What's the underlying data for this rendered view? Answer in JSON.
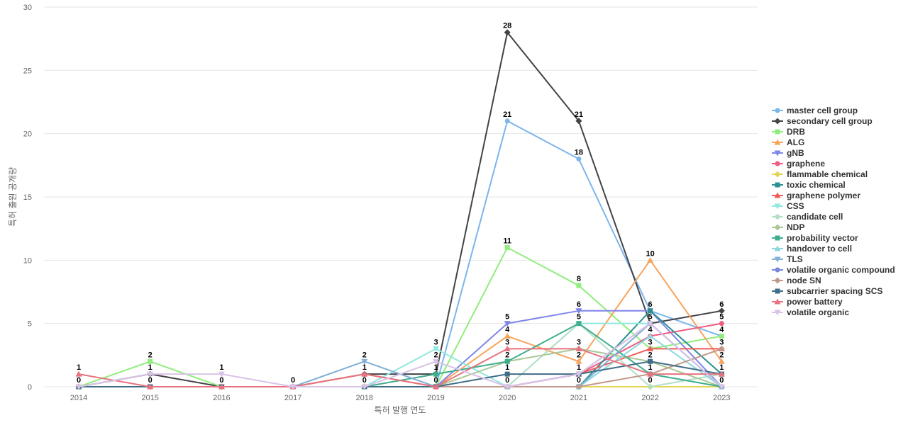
{
  "chart_data": {
    "type": "line",
    "title": "",
    "xlabel": "특허 발행 연도",
    "ylabel": "특허 출원 공개량",
    "ylim": [
      0,
      30
    ],
    "yticks": [
      0,
      5,
      10,
      15,
      20,
      25,
      30
    ],
    "categories": [
      "2014",
      "2015",
      "2016",
      "2017",
      "2018",
      "2019",
      "2020",
      "2021",
      "2022",
      "2023"
    ],
    "legend_position": "right",
    "series": [
      {
        "name": "master cell group",
        "color": "#7cb5ec",
        "marker": "circle",
        "values": [
          0,
          0,
          0,
          0,
          0,
          0,
          21,
          18,
          6,
          4
        ]
      },
      {
        "name": "secondary cell group",
        "color": "#434348",
        "marker": "diamond",
        "values": [
          0,
          1,
          0,
          0,
          1,
          1,
          28,
          21,
          5,
          6
        ]
      },
      {
        "name": "DRB",
        "color": "#90ed7d",
        "marker": "square",
        "values": [
          0,
          2,
          0,
          0,
          0,
          0,
          11,
          8,
          3,
          4
        ]
      },
      {
        "name": "ALG",
        "color": "#f7a35c",
        "marker": "triangle",
        "values": [
          0,
          0,
          0,
          0,
          1,
          0,
          4,
          2,
          10,
          2
        ]
      },
      {
        "name": "gNB",
        "color": "#8085e9",
        "marker": "triangle-down",
        "values": [
          0,
          0,
          0,
          0,
          0,
          0,
          5,
          6,
          6,
          0
        ]
      },
      {
        "name": "graphene",
        "color": "#f15c80",
        "marker": "circle",
        "values": [
          0,
          0,
          0,
          0,
          0,
          0,
          0,
          1,
          4,
          5
        ]
      },
      {
        "name": "flammable chemical",
        "color": "#e4d354",
        "marker": "diamond",
        "values": [
          0,
          0,
          0,
          0,
          0,
          0,
          0,
          0,
          0,
          0
        ]
      },
      {
        "name": "toxic chemical",
        "color": "#2b908f",
        "marker": "square",
        "values": [
          0,
          0,
          0,
          0,
          0,
          0,
          0,
          0,
          6,
          1
        ]
      },
      {
        "name": "graphene polymer",
        "color": "#f45b5b",
        "marker": "triangle",
        "values": [
          0,
          0,
          0,
          0,
          0,
          0,
          0,
          1,
          3,
          3
        ]
      },
      {
        "name": "CSS",
        "color": "#91e8e1",
        "marker": "triangle-down",
        "values": [
          0,
          0,
          0,
          0,
          0,
          3,
          0,
          5,
          5,
          0
        ]
      },
      {
        "name": "candidate cell",
        "color": "#b5dfc5",
        "marker": "circle",
        "values": [
          0,
          0,
          0,
          0,
          0,
          0,
          0,
          5,
          0,
          1
        ]
      },
      {
        "name": "NDP",
        "color": "#a8c897",
        "marker": "diamond",
        "values": [
          0,
          0,
          0,
          0,
          0,
          0,
          2,
          3,
          2,
          0
        ]
      },
      {
        "name": "probability vector",
        "color": "#3fae8e",
        "marker": "square",
        "values": [
          0,
          0,
          0,
          0,
          0,
          1,
          2,
          5,
          1,
          0
        ]
      },
      {
        "name": "handover to cell",
        "color": "#8fd6e0",
        "marker": "triangle",
        "values": [
          0,
          0,
          0,
          0,
          0,
          0,
          0,
          0,
          4,
          0
        ]
      },
      {
        "name": "TLS",
        "color": "#82b0d6",
        "marker": "triangle-down",
        "values": [
          0,
          0,
          0,
          0,
          2,
          0,
          0,
          0,
          5,
          0
        ]
      },
      {
        "name": "volatile organic compound",
        "color": "#7a88dc",
        "marker": "circle",
        "values": [
          0,
          0,
          0,
          0,
          0,
          0,
          0,
          1,
          5,
          0
        ]
      },
      {
        "name": "node SN",
        "color": "#c1998a",
        "marker": "diamond",
        "values": [
          0,
          0,
          0,
          0,
          0,
          0,
          0,
          0,
          1,
          3
        ]
      },
      {
        "name": "subcarrier spacing SCS",
        "color": "#406d87",
        "marker": "square",
        "values": [
          0,
          0,
          0,
          0,
          0,
          0,
          1,
          1,
          2,
          1
        ]
      },
      {
        "name": "power battery",
        "color": "#e8727f",
        "marker": "triangle",
        "values": [
          1,
          0,
          0,
          0,
          1,
          0,
          3,
          3,
          1,
          1
        ]
      },
      {
        "name": "volatile organic",
        "color": "#d9c3e6",
        "marker": "triangle-down",
        "values": [
          0,
          1,
          1,
          0,
          0,
          2,
          0,
          1,
          5,
          0
        ]
      }
    ],
    "data_labels": [
      {
        "category": "2014",
        "values": [
          "1",
          "0"
        ]
      },
      {
        "category": "2015",
        "values": [
          "2",
          "1",
          "0"
        ]
      },
      {
        "category": "2016",
        "values": [
          "1",
          "0"
        ]
      },
      {
        "category": "2017",
        "values": [
          "0"
        ]
      },
      {
        "category": "2018",
        "values": [
          "2",
          "1",
          "0"
        ]
      },
      {
        "category": "2019",
        "values": [
          "3",
          "2",
          "1",
          "0"
        ]
      },
      {
        "category": "2020",
        "values": [
          "28",
          "21",
          "11",
          "5",
          "4",
          "3",
          "2",
          "1",
          "0"
        ]
      },
      {
        "category": "2021",
        "values": [
          "21",
          "18",
          "8",
          "6",
          "5",
          "3",
          "2",
          "1",
          "0"
        ]
      },
      {
        "category": "2022",
        "values": [
          "10",
          "6",
          "5",
          "4",
          "3",
          "2",
          "1",
          "0"
        ]
      },
      {
        "category": "2023",
        "values": [
          "6",
          "5",
          "4",
          "3",
          "2",
          "1",
          "0"
        ]
      }
    ]
  }
}
